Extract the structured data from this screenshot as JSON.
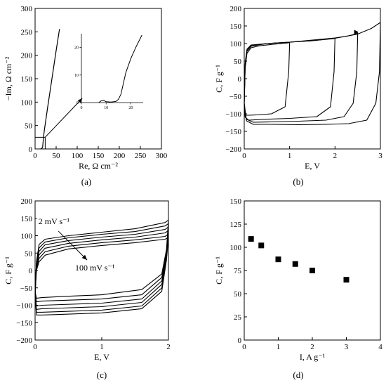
{
  "chart_data": [
    {
      "panel": "a",
      "type": "line",
      "caption": "(a)",
      "xlabel": "Re, Ω cm⁻²",
      "ylabel": "−Im, Ω cm⁻²",
      "xlim": [
        0,
        300
      ],
      "ylim": [
        0,
        300
      ],
      "xticks": [
        0,
        50,
        100,
        150,
        200,
        250,
        300
      ],
      "yticks": [
        0,
        50,
        100,
        150,
        200,
        250,
        300
      ],
      "series": [
        {
          "x": [
            13,
            16,
            18,
            20,
            22,
            30,
            40,
            50,
            58
          ],
          "y": [
            0,
            1,
            5,
            25,
            40,
            90,
            150,
            210,
            256
          ]
        }
      ],
      "annotations": [
        {
          "type": "zoom-box",
          "x": [
            0,
            24
          ],
          "y": [
            0,
            25
          ]
        },
        {
          "type": "arrow",
          "from": [
            24,
            25
          ],
          "to": [
            112,
            108
          ]
        }
      ],
      "inset": {
        "xlim": [
          0,
          25
        ],
        "ylim": [
          0,
          25
        ],
        "xticks": [
          0,
          10,
          20
        ],
        "yticks": [
          0,
          10,
          20
        ],
        "x": [
          7,
          8,
          9,
          10,
          12,
          14,
          15,
          16,
          17,
          18,
          20,
          22,
          24.5
        ],
        "y": [
          0,
          0.6,
          0.8,
          0.3,
          0.2,
          0.4,
          1.2,
          3,
          7,
          11,
          16,
          20,
          24.5
        ]
      }
    },
    {
      "panel": "b",
      "type": "line",
      "caption": "(b)",
      "xlabel": "E, V",
      "ylabel": "C, F g⁻¹",
      "xlim": [
        0,
        3
      ],
      "ylim": [
        -200,
        200
      ],
      "xticks": [
        0,
        1,
        2,
        3
      ],
      "yticks": [
        -200,
        -150,
        -100,
        -50,
        0,
        50,
        100,
        150,
        200
      ],
      "series": [
        {
          "window": 1.0,
          "x_forward": [
            0,
            0.02,
            0.06,
            0.15,
            0.35,
            0.65,
            0.98,
            1.0
          ],
          "y_forward": [
            -70,
            30,
            72,
            88,
            94,
            98,
            102,
            104
          ],
          "x_back": [
            1.0,
            0.98,
            0.9,
            0.6,
            0.3,
            0.1,
            0.03,
            0.01,
            0
          ],
          "y_back": [
            104,
            20,
            -80,
            -100,
            -103,
            -104,
            -104,
            -90,
            -70
          ]
        },
        {
          "window": 2.0,
          "x_forward": [
            0,
            0.02,
            0.06,
            0.15,
            0.5,
            1.0,
            1.5,
            1.98,
            2.0
          ],
          "y_forward": [
            -70,
            35,
            78,
            92,
            100,
            104,
            108,
            114,
            116
          ],
          "x_back": [
            2.0,
            1.98,
            1.9,
            1.6,
            1.0,
            0.4,
            0.1,
            0.02,
            0
          ],
          "y_back": [
            116,
            20,
            -80,
            -108,
            -113,
            -116,
            -118,
            -110,
            -70
          ]
        },
        {
          "window": 2.5,
          "x_forward": [
            0,
            0.02,
            0.06,
            0.15,
            0.5,
            1.0,
            1.5,
            2.0,
            2.3,
            2.48,
            2.5
          ],
          "y_forward": [
            -70,
            40,
            82,
            94,
            100,
            104,
            110,
            116,
            122,
            128,
            131
          ],
          "x_back": [
            2.5,
            2.48,
            2.4,
            2.2,
            1.8,
            1.2,
            0.6,
            0.2,
            0.04,
            0
          ],
          "y_back": [
            131,
            20,
            -70,
            -108,
            -118,
            -121,
            -123,
            -124,
            -115,
            -70
          ],
          "direction_arrow": true
        },
        {
          "window": 3.0,
          "x_forward": [
            0,
            0.02,
            0.06,
            0.15,
            0.5,
            1.0,
            1.5,
            2.0,
            2.5,
            2.8,
            3.0
          ],
          "y_forward": [
            -70,
            45,
            84,
            96,
            100,
            104,
            108,
            115,
            127,
            143,
            160
          ],
          "x_back": [
            3.0,
            2.98,
            2.9,
            2.7,
            2.3,
            1.8,
            1.2,
            0.6,
            0.2,
            0.05,
            0
          ],
          "y_back": [
            160,
            20,
            -70,
            -118,
            -128,
            -130,
            -131,
            -130,
            -130,
            -120,
            -70
          ]
        }
      ]
    },
    {
      "panel": "c",
      "type": "line",
      "caption": "(c)",
      "xlabel": "E, V",
      "ylabel": "C, F g⁻¹",
      "xlim": [
        0,
        2
      ],
      "ylim": [
        -200,
        200
      ],
      "xticks": [
        0,
        1,
        2
      ],
      "yticks": [
        -200,
        -150,
        -100,
        -50,
        0,
        50,
        100,
        150,
        200
      ],
      "annotations": [
        {
          "text": "2 mV s⁻¹",
          "x": 0.05,
          "y": 133
        },
        {
          "text": "100 mV s⁻¹",
          "x": 0.6,
          "y": 0
        },
        {
          "type": "arrow",
          "from": [
            0.35,
            113
          ],
          "to": [
            0.78,
            30
          ]
        }
      ],
      "series": [
        {
          "top": {
            "x": [
              0,
              0.02,
              0.06,
              0.15,
              0.5,
              1.0,
              1.5,
              1.95,
              2.0
            ],
            "y": [
              -60,
              25,
              75,
              90,
              100,
              110,
              120,
              138,
              145
            ]
          },
          "bottom": {
            "x": [
              2.0,
              1.97,
              1.9,
              1.6,
              1.0,
              0.4,
              0.1,
              0.02,
              0
            ],
            "y": [
              145,
              60,
              -10,
              -55,
              -70,
              -75,
              -78,
              -80,
              -60
            ]
          }
        },
        {
          "top": {
            "x": [
              0,
              0.02,
              0.06,
              0.15,
              0.5,
              1.0,
              1.5,
              1.95,
              2.0
            ],
            "y": [
              -62,
              20,
              65,
              82,
              94,
              104,
              112,
              128,
              135
            ]
          },
          "bottom": {
            "x": [
              2.0,
              1.97,
              1.9,
              1.6,
              1.0,
              0.4,
              0.1,
              0.02,
              0
            ],
            "y": [
              135,
              50,
              -20,
              -70,
              -82,
              -86,
              -88,
              -90,
              -62
            ]
          }
        },
        {
          "top": {
            "x": [
              0,
              0.02,
              0.06,
              0.15,
              0.5,
              1.0,
              1.5,
              1.95,
              2.0
            ],
            "y": [
              -64,
              15,
              55,
              74,
              86,
              96,
              104,
              118,
              125
            ]
          },
          "bottom": {
            "x": [
              2.0,
              1.97,
              1.9,
              1.6,
              1.0,
              0.4,
              0.1,
              0.02,
              0
            ],
            "y": [
              125,
              45,
              -30,
              -82,
              -94,
              -98,
              -100,
              -102,
              -64
            ]
          }
        },
        {
          "top": {
            "x": [
              0,
              0.02,
              0.06,
              0.15,
              0.5,
              1.0,
              1.5,
              1.95,
              2.0
            ],
            "y": [
              -66,
              10,
              45,
              64,
              78,
              88,
              96,
              108,
              115
            ]
          },
          "bottom": {
            "x": [
              2.0,
              1.97,
              1.9,
              1.6,
              1.0,
              0.4,
              0.1,
              0.02,
              0
            ],
            "y": [
              115,
              40,
              -40,
              -92,
              -104,
              -108,
              -110,
              -112,
              -66
            ]
          }
        },
        {
          "top": {
            "x": [
              0,
              0.02,
              0.06,
              0.15,
              0.5,
              1.0,
              1.5,
              1.95,
              2.0
            ],
            "y": [
              -68,
              5,
              35,
              54,
              70,
              80,
              88,
              98,
              105
            ]
          },
          "bottom": {
            "x": [
              2.0,
              1.97,
              1.9,
              1.6,
              1.0,
              0.4,
              0.1,
              0.02,
              0
            ],
            "y": [
              105,
              35,
              -50,
              -102,
              -114,
              -118,
              -120,
              -120,
              -68
            ]
          }
        },
        {
          "top": {
            "x": [
              0,
              0.02,
              0.06,
              0.15,
              0.5,
              1.0,
              1.5,
              1.95,
              2.0
            ],
            "y": [
              -70,
              0,
              25,
              44,
              62,
              72,
              80,
              90,
              95
            ]
          },
          "bottom": {
            "x": [
              2.0,
              1.97,
              1.9,
              1.6,
              1.0,
              0.4,
              0.1,
              0.02,
              0
            ],
            "y": [
              95,
              30,
              -60,
              -110,
              -122,
              -126,
              -128,
              -128,
              -70
            ]
          }
        }
      ]
    },
    {
      "panel": "d",
      "type": "scatter",
      "caption": "(d)",
      "xlabel": "I, A g⁻¹",
      "ylabel": "C, F g⁻¹",
      "xlim": [
        0,
        4
      ],
      "ylim": [
        0,
        150
      ],
      "xticks": [
        0,
        1,
        2,
        3,
        4
      ],
      "yticks": [
        0,
        25,
        50,
        75,
        100,
        125,
        150
      ],
      "x": [
        0.2,
        0.5,
        1,
        1.5,
        2,
        3
      ],
      "y": [
        109,
        102,
        87,
        82,
        75,
        65
      ]
    }
  ]
}
